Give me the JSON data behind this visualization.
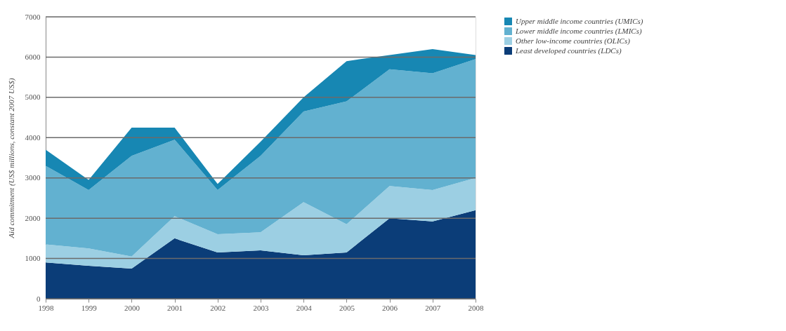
{
  "chart_data": {
    "type": "area",
    "stacked": true,
    "ylabel": "Aid commitment (US$ millions, constant 2007 US$)",
    "x": [
      1998,
      1999,
      2000,
      2001,
      2002,
      2003,
      2004,
      2005,
      2006,
      2007,
      2008
    ],
    "xlim": [
      1998,
      2008
    ],
    "xticks": [
      1998,
      1999,
      2000,
      2001,
      2002,
      2003,
      2004,
      2005,
      2006,
      2007,
      2008
    ],
    "ylim": [
      0,
      7000
    ],
    "yticks": [
      0,
      1000,
      2000,
      3000,
      4000,
      5000,
      6000,
      7000
    ],
    "grid": "y",
    "legend": "right",
    "series": [
      {
        "name": "Least developed countries (LDCs)",
        "color": "#0b3d78",
        "values": [
          900,
          820,
          750,
          1500,
          1150,
          1200,
          1080,
          1150,
          2000,
          1920,
          2200
        ]
      },
      {
        "name": "Other low-income countries (OLICs)",
        "color": "#9ccfe3",
        "values": [
          450,
          430,
          300,
          550,
          450,
          450,
          1320,
          700,
          800,
          780,
          800
        ]
      },
      {
        "name": "Lower middle income countries (LMICs)",
        "color": "#62b1d0",
        "values": [
          1950,
          1450,
          2500,
          1900,
          1100,
          1900,
          2250,
          3050,
          2900,
          2900,
          2950
        ]
      },
      {
        "name": "Upper middle income countries (UMICs)",
        "color": "#1787b3",
        "values": [
          400,
          250,
          700,
          300,
          150,
          350,
          350,
          1000,
          350,
          600,
          100
        ]
      }
    ]
  }
}
